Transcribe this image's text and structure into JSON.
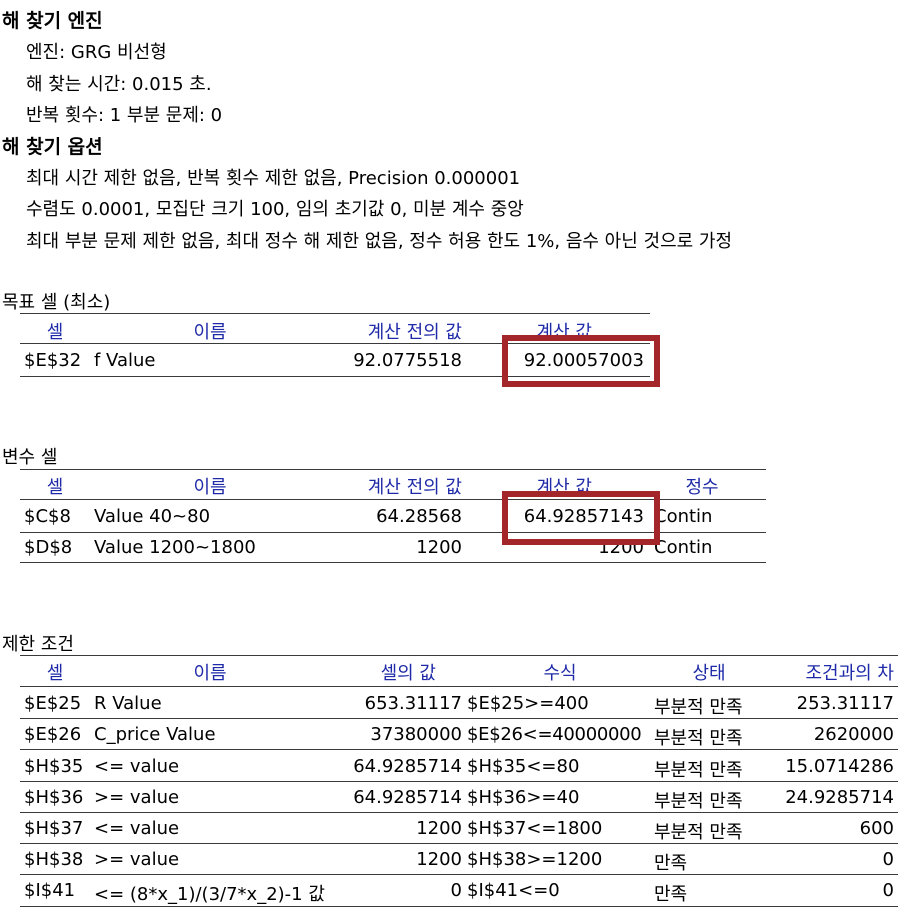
{
  "engine": {
    "title": "해 찾기 엔진",
    "lines": [
      "엔진: GRG 비선형",
      "해 찾는 시간: 0.015 초.",
      "반복 횟수: 1 부분 문제: 0"
    ]
  },
  "options": {
    "title": "해 찾기 옵션",
    "lines": [
      "최대 시간 제한 없음,  반복 횟수 제한 없음, Precision 0.000001",
      " 수렴도 0.0001, 모집단 크기 100, 임의 초기값 0, 미분 계수 중앙",
      "최대 부분 문제 제한 없음, 최대 정수 해 제한 없음, 정수 허용 한도 1%, 음수 아닌 것으로 가정"
    ]
  },
  "objective": {
    "title": "목표 셀 (최소)",
    "headers": {
      "cell": "셀",
      "name": "이름",
      "original": "계산 전의 값",
      "final": "계산 값"
    },
    "row": {
      "cell": "$E$32",
      "name": "f Value",
      "original": "92.0775518",
      "final": "92.00057003"
    }
  },
  "variables": {
    "title": "변수 셀",
    "headers": {
      "cell": "셀",
      "name": "이름",
      "original": "계산 전의 값",
      "final": "계산 값",
      "integer": "정수"
    },
    "rows": [
      {
        "cell": "$C$8",
        "name": "Value 40~80",
        "original": "64.28568",
        "final": "64.92857143",
        "integer": "Contin"
      },
      {
        "cell": "$D$8",
        "name": "Value 1200~1800",
        "original": "1200",
        "final": "1200",
        "integer": "Contin"
      }
    ]
  },
  "constraints": {
    "title": "제한 조건",
    "headers": {
      "cell": "셀",
      "name": "이름",
      "value": "셀의 값",
      "formula": "수식",
      "status": "상태",
      "slack": "조건과의 차"
    },
    "rows": [
      {
        "cell": "$E$25",
        "name": "R Value",
        "value": "653.31117",
        "formula": "$E$25>=400",
        "status": "부분적 만족",
        "slack": "253.31117"
      },
      {
        "cell": "$E$26",
        "name": "C_price Value",
        "value": "37380000",
        "formula": "$E$26<=40000000",
        "status": "부분적 만족",
        "slack": "2620000"
      },
      {
        "cell": "$H$35",
        "name": "<= value",
        "value": "64.9285714",
        "formula": "$H$35<=80",
        "status": "부분적 만족",
        "slack": "15.0714286"
      },
      {
        "cell": "$H$36",
        "name": ">= value",
        "value": "64.9285714",
        "formula": "$H$36>=40",
        "status": "부분적 만족",
        "slack": "24.9285714"
      },
      {
        "cell": "$H$37",
        "name": "<= value",
        "value": "1200",
        "formula": "$H$37<=1800",
        "status": "부분적 만족",
        "slack": "600"
      },
      {
        "cell": "$H$38",
        "name": ">= value",
        "value": "1200",
        "formula": "$H$38>=1200",
        "status": "만족",
        "slack": "0"
      },
      {
        "cell": "$I$41",
        "name": "<= (8*x_1)/(3/7*x_2)-1 값",
        "value": "0",
        "formula": "$I$41<=0",
        "status": "만족",
        "slack": "0"
      }
    ]
  },
  "colors": {
    "header_text": "#1f2aa8",
    "highlight_box": "#a3262a"
  }
}
